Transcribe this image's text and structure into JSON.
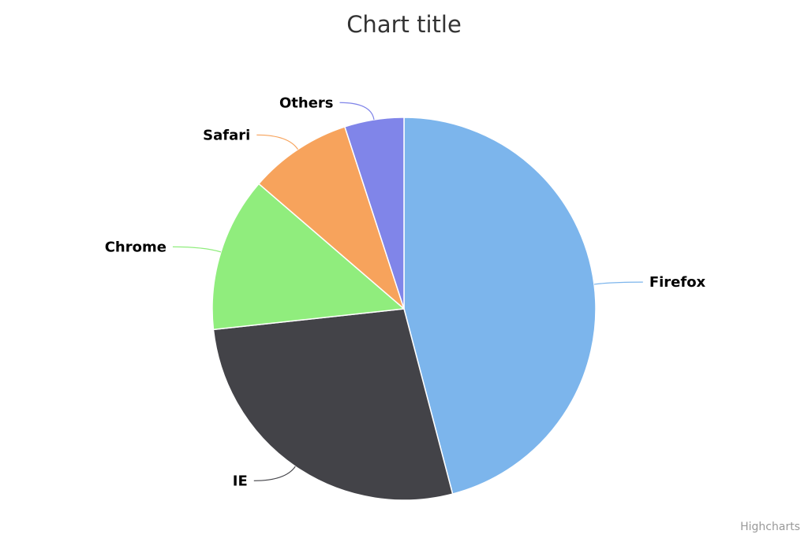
{
  "chart_data": {
    "type": "pie",
    "title": "Chart title",
    "slices": [
      {
        "name": "Firefox",
        "value": 45.0,
        "color": "#7cb5ec"
      },
      {
        "name": "IE",
        "value": 26.8,
        "color": "#434348"
      },
      {
        "name": "Chrome",
        "value": 12.8,
        "color": "#90ed7d"
      },
      {
        "name": "Safari",
        "value": 8.5,
        "color": "#f7a35c"
      },
      {
        "name": "Others",
        "value": 4.9,
        "color": "#8085e9"
      }
    ],
    "labels": "outside-with-connectors",
    "start_angle": "12 o'clock",
    "direction": "clockwise"
  },
  "credits": "Highcharts"
}
